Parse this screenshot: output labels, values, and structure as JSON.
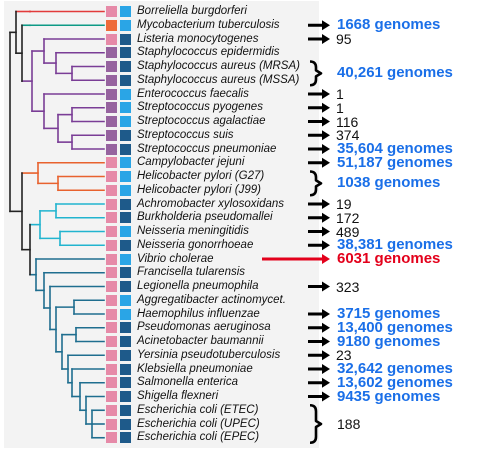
{
  "colors": {
    "tree_default": "#222222",
    "tree_teal": "#0e9a86",
    "tree_purple": "#7a3d96",
    "tree_orange": "#e8622e",
    "tree_cyan": "#21b4cf",
    "tree_blue": "#1f6e8f",
    "tree_red": "#e23b3b",
    "square_pink": "#e68aa8",
    "square_purple": "#96639f",
    "square_orange": "#ee6b3a",
    "square_lightblue": "#2aa5e6",
    "square_darkblue": "#1e5a8a",
    "count_blue": "#1a6fe8",
    "count_red": "#e3001b"
  },
  "species": [
    {
      "name": "Borreliella burgdorferi",
      "sq1": "pink",
      "sq2": "lightblue"
    },
    {
      "name": "Mycobacterium tuberculosis",
      "sq1": "orange",
      "sq2": "lightblue"
    },
    {
      "name": "Listeria monocytogenes",
      "sq1": "pink",
      "sq2": "darkblue"
    },
    {
      "name": "Staphylococcus epidermidis",
      "sq1": "purple",
      "sq2": "darkblue"
    },
    {
      "name": "Staphylococcus aureus (MRSA)",
      "sq1": "purple",
      "sq2": "darkblue"
    },
    {
      "name": "Staphylococcus aureus (MSSA)",
      "sq1": "purple",
      "sq2": "darkblue"
    },
    {
      "name": "Enterococcus faecalis",
      "sq1": "purple",
      "sq2": "lightblue"
    },
    {
      "name": "Streptococcus pyogenes",
      "sq1": "purple",
      "sq2": "lightblue"
    },
    {
      "name": "Streptococcus agalactiae",
      "sq1": "purple",
      "sq2": "lightblue"
    },
    {
      "name": "Streptococcus suis",
      "sq1": "purple",
      "sq2": "darkblue"
    },
    {
      "name": "Streptococcus pneumoniae",
      "sq1": "purple",
      "sq2": "darkblue"
    },
    {
      "name": "Campylobacter jejuni",
      "sq1": "pink",
      "sq2": "lightblue"
    },
    {
      "name": "Helicobacter pylori (G27)",
      "sq1": "pink",
      "sq2": "lightblue"
    },
    {
      "name": "Helicobacter pylori (J99)",
      "sq1": "pink",
      "sq2": "lightblue"
    },
    {
      "name": "Achromobacter xylosoxidans",
      "sq1": "pink",
      "sq2": "darkblue"
    },
    {
      "name": "Burkholderia pseudomallei",
      "sq1": "pink",
      "sq2": "darkblue"
    },
    {
      "name": "Neisseria meningitidis",
      "sq1": "pink",
      "sq2": "lightblue"
    },
    {
      "name": "Neisseria gonorrhoeae",
      "sq1": "pink",
      "sq2": "darkblue"
    },
    {
      "name": "Vibrio cholerae",
      "sq1": "pink",
      "sq2": "lightblue"
    },
    {
      "name": "Francisella tularensis",
      "sq1": "pink",
      "sq2": "darkblue"
    },
    {
      "name": "Legionella pneumophila",
      "sq1": "pink",
      "sq2": "darkblue"
    },
    {
      "name": "Aggregatibacter actinomycet.",
      "sq1": "pink",
      "sq2": "lightblue"
    },
    {
      "name": "Haemophilus influenzae",
      "sq1": "pink",
      "sq2": "lightblue"
    },
    {
      "name": "Pseudomonas aeruginosa",
      "sq1": "pink",
      "sq2": "darkblue"
    },
    {
      "name": "Acinetobacter baumannii",
      "sq1": "pink",
      "sq2": "darkblue"
    },
    {
      "name": "Yersinia pseudotuberculosis",
      "sq1": "pink",
      "sq2": "darkblue"
    },
    {
      "name": "Klebsiella pneumoniae",
      "sq1": "pink",
      "sq2": "darkblue"
    },
    {
      "name": "Salmonella enterica",
      "sq1": "pink",
      "sq2": "darkblue"
    },
    {
      "name": "Shigella flexneri",
      "sq1": "pink",
      "sq2": "darkblue"
    },
    {
      "name": "Escherichia coli (ETEC)",
      "sq1": "pink",
      "sq2": "darkblue"
    },
    {
      "name": "Escherichia coli (UPEC)",
      "sq1": "pink",
      "sq2": "darkblue"
    },
    {
      "name": "Escherichia coli (EPEC)",
      "sq1": "pink",
      "sq2": "darkblue"
    }
  ],
  "counts": [
    {
      "text": "1668 genomes",
      "style": "big",
      "rows": [
        1
      ]
    },
    {
      "text": "95",
      "style": "small",
      "rows": [
        2
      ]
    },
    {
      "text": "40,261 genomes",
      "style": "big",
      "rows": [
        4,
        5
      ]
    },
    {
      "text": "1",
      "style": "small",
      "rows": [
        6
      ]
    },
    {
      "text": "1",
      "style": "small",
      "rows": [
        7
      ]
    },
    {
      "text": "116",
      "style": "small",
      "rows": [
        8
      ]
    },
    {
      "text": "374",
      "style": "small",
      "rows": [
        9
      ]
    },
    {
      "text": "35,604 genomes",
      "style": "big",
      "rows": [
        10
      ]
    },
    {
      "text": "51,187 genomes",
      "style": "big",
      "rows": [
        11
      ]
    },
    {
      "text": "1038 genomes",
      "style": "big",
      "rows": [
        12,
        13
      ]
    },
    {
      "text": "19",
      "style": "small",
      "rows": [
        14
      ]
    },
    {
      "text": "172",
      "style": "small",
      "rows": [
        15
      ]
    },
    {
      "text": "489",
      "style": "small",
      "rows": [
        16
      ]
    },
    {
      "text": "38,381 genomes",
      "style": "big",
      "rows": [
        17
      ]
    },
    {
      "text": "6031 genomes",
      "style": "red",
      "rows": [
        18
      ]
    },
    {
      "text": "323",
      "style": "small",
      "rows": [
        20
      ]
    },
    {
      "text": "3715 genomes",
      "style": "big",
      "rows": [
        22
      ]
    },
    {
      "text": "13,400 genomes",
      "style": "big",
      "rows": [
        23
      ]
    },
    {
      "text": "9180 genomes",
      "style": "big",
      "rows": [
        24
      ]
    },
    {
      "text": "23",
      "style": "small",
      "rows": [
        25
      ]
    },
    {
      "text": "32,642 genomes",
      "style": "big",
      "rows": [
        26
      ]
    },
    {
      "text": "13,602 genomes",
      "style": "big",
      "rows": [
        27
      ]
    },
    {
      "text": "9435 genomes",
      "style": "big",
      "rows": [
        28
      ]
    },
    {
      "text": "188",
      "style": "small",
      "rows": [
        29,
        30,
        31
      ]
    }
  ]
}
